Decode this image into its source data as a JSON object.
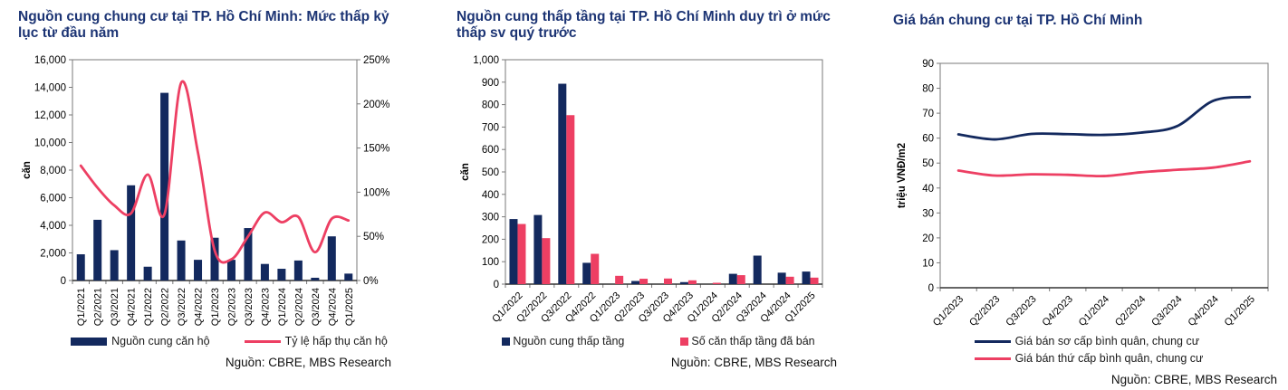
{
  "colors": {
    "navy": "#13295E",
    "red": "#ED3F63",
    "title_blue": "#1C3474",
    "axis": "#7a7a7a"
  },
  "chart_data": [
    {
      "type": "bar+line",
      "title": "Nguồn cung chung cư tại TP. Hồ Chí Minh: Mức thấp kỷ lục từ đầu năm",
      "source": "Nguồn: CBRE, MBS Research",
      "categories": [
        "Q1/2021",
        "Q2/2021",
        "Q3/2021",
        "Q4/2021",
        "Q1/2022",
        "Q2/2022",
        "Q3/2022",
        "Q4/2022",
        "Q1/2023",
        "Q2/2023",
        "Q3/2023",
        "Q4/2023",
        "Q1/2024",
        "Q2/2024",
        "Q3/2024",
        "Q4/2024",
        "Q1/2025"
      ],
      "series": [
        {
          "name": "Nguồn cung căn hộ",
          "type": "bar",
          "axis": "left",
          "color": "navy",
          "values": [
            1900,
            4400,
            2200,
            6900,
            1000,
            13600,
            2900,
            1500,
            3100,
            1500,
            3800,
            1200,
            850,
            1450,
            200,
            3200,
            500
          ]
        },
        {
          "name": "Tỷ lệ hấp thụ căn hộ",
          "type": "line",
          "axis": "right",
          "color": "red",
          "values": [
            130,
            105,
            85,
            76,
            120,
            75,
            224,
            145,
            34,
            24,
            50,
            77,
            66,
            72,
            32,
            70,
            68
          ]
        }
      ],
      "left_axis": {
        "label": "căn",
        "min": 0,
        "max": 16000,
        "step": 2000,
        "format": "comma"
      },
      "right_axis": {
        "min": 0,
        "max": 250,
        "step": 50,
        "suffix": "%"
      },
      "grid": false,
      "legend_position": "bottom"
    },
    {
      "type": "grouped-bar",
      "title": "Nguồn cung thấp tầng tại TP. Hồ Chí Minh duy trì ở mức thấp sv quý trước",
      "source": "Nguồn: CBRE, MBS Research",
      "categories": [
        "Q1/2022",
        "Q2/2022",
        "Q3/2022",
        "Q4/2022",
        "Q1/2023",
        "Q2/2023",
        "Q3/2023",
        "Q4/2023",
        "Q1/2024",
        "Q2/2024",
        "Q3/2024",
        "Q4/2024",
        "Q1/2025"
      ],
      "series": [
        {
          "name": "Nguồn cung thấp tầng",
          "type": "bar",
          "axis": "left",
          "color": "navy",
          "values": [
            290,
            308,
            893,
            95,
            0,
            14,
            0,
            9,
            0,
            46,
            127,
            51,
            56
          ]
        },
        {
          "name": "Số căn thấp tầng đã bán",
          "type": "bar",
          "axis": "left",
          "color": "red",
          "values": [
            268,
            205,
            753,
            135,
            37,
            24,
            25,
            17,
            6,
            40,
            0,
            33,
            29
          ]
        }
      ],
      "left_axis": {
        "label": "căn",
        "min": 0,
        "max": 1000,
        "step": 100,
        "format": "comma"
      },
      "grid": false,
      "legend_position": "bottom"
    },
    {
      "type": "line",
      "title": "Giá bán chung cư tại TP. Hồ Chí Minh",
      "source": "Nguồn: CBRE, MBS Research",
      "categories": [
        "Q1/2023",
        "Q2/2023",
        "Q3/2023",
        "Q4/2023",
        "Q1/2024",
        "Q2/2024",
        "Q3/2024",
        "Q4/2024",
        "Q1/2025"
      ],
      "series": [
        {
          "name": "Giá bán sơ cấp bình quân, chung cư",
          "type": "line",
          "axis": "left",
          "color": "navy",
          "values": [
            61.5,
            59.5,
            61.7,
            61.6,
            61.3,
            62.2,
            64.8,
            75,
            76.5
          ]
        },
        {
          "name": "Giá bán thứ cấp bình quân, chung cư",
          "type": "line",
          "axis": "left",
          "color": "red",
          "values": [
            47,
            45,
            45.5,
            45.3,
            44.8,
            46.3,
            47.3,
            48.2,
            50.7
          ]
        }
      ],
      "left_axis": {
        "label": "triệu VNĐ/m2",
        "min": 0,
        "max": 90,
        "step": 10,
        "format": "plain"
      },
      "grid": false,
      "legend_position": "bottom"
    }
  ]
}
